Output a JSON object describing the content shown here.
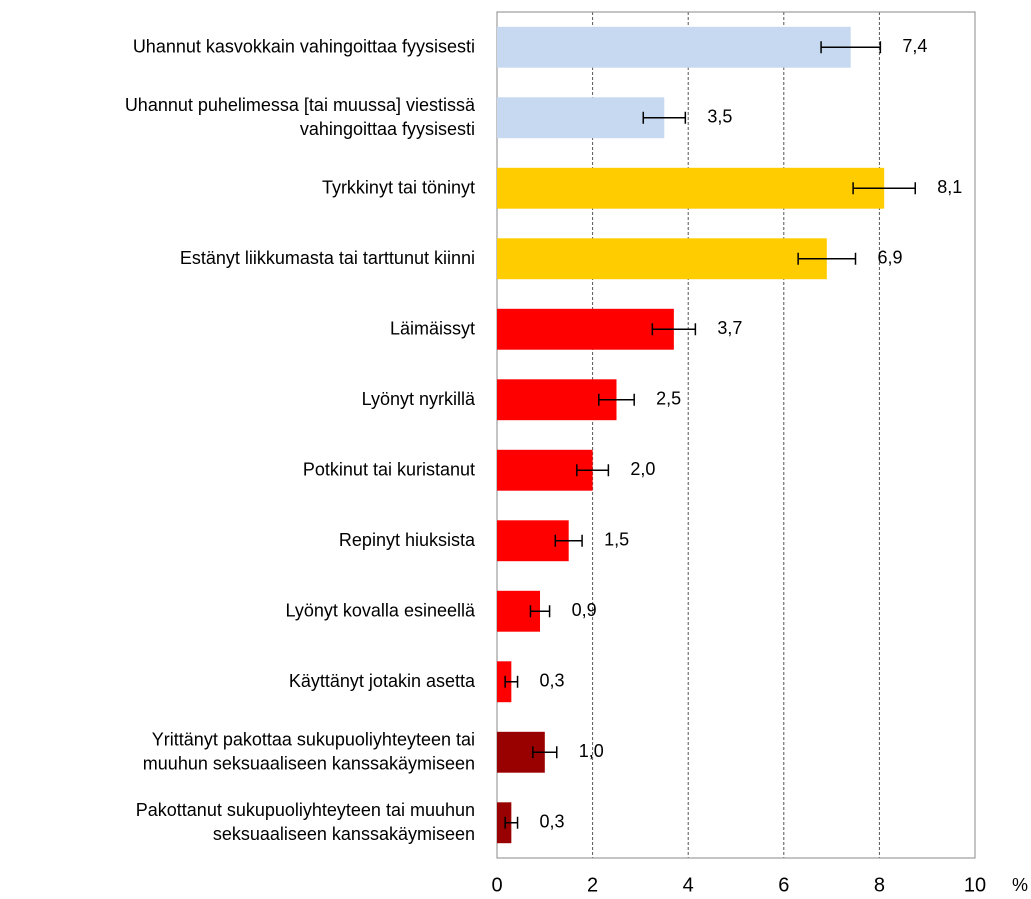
{
  "chart_data": {
    "type": "barh",
    "categories": [
      "Uhannut kasvokkain vahingoittaa fyysisesti",
      "Uhannut puhelimessa [tai muussa] viestissä\nvahingoittaa fyysisesti",
      "Tyrkkinyt tai töninyt",
      "Estänyt liikkumasta tai tarttunut kiinni",
      "Läimäissyt",
      "Lyönyt nyrkillä",
      "Potkinut tai kuristanut",
      "Repinyt hiuksista",
      "Lyönyt kovalla esineellä",
      "Käyttänyt jotakin asetta",
      "Yrittänyt pakottaa sukupuoliyhteyteen tai\nmuuhun seksuaaliseen kanssakäymiseen",
      "Pakottanut sukupuoliyhteyteen tai muuhun\nseksuaaliseen kanssakäymiseen"
    ],
    "values": [
      7.4,
      3.5,
      8.1,
      6.9,
      3.7,
      2.5,
      2.0,
      1.5,
      0.9,
      0.3,
      1.0,
      0.3
    ],
    "value_labels": [
      "7,4",
      "3,5",
      "8,1",
      "6,9",
      "3,7",
      "2,5",
      "2,0",
      "1,5",
      "0,9",
      "0,3",
      "1,0",
      "0,3"
    ],
    "errors": [
      0.62,
      0.44,
      0.65,
      0.6,
      0.45,
      0.37,
      0.33,
      0.28,
      0.2,
      0.13,
      0.25,
      0.13
    ],
    "colors": [
      "#c6d9f1",
      "#c6d9f1",
      "#ffcc00",
      "#ffcc00",
      "#ff0000",
      "#ff0000",
      "#ff0000",
      "#ff0000",
      "#ff0000",
      "#ff0000",
      "#990000",
      "#990000"
    ],
    "xlim": [
      0,
      10
    ],
    "xticks": [
      0,
      2,
      4,
      6,
      8,
      10
    ],
    "xlabel": "%",
    "grid": true
  }
}
